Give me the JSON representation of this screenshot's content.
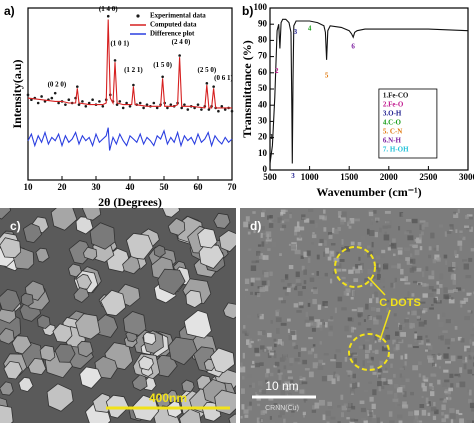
{
  "chart_data": [
    {
      "type": "line",
      "panel_label": "a)",
      "x_label": "2θ (Degrees)",
      "y_label": "Intensity(a.u)",
      "xlim": [
        10,
        70
      ],
      "xticks": [
        10,
        20,
        30,
        40,
        50,
        60,
        70
      ],
      "ylim": [
        0,
        105
      ],
      "legend": "upper right",
      "series": [
        {
          "name": "Experimental data",
          "color": "#1a1a1a",
          "style": "markers",
          "x": [
            10,
            11,
            12,
            13,
            14,
            15,
            16,
            17,
            18,
            19,
            20,
            21,
            22,
            23,
            24,
            24.5,
            25,
            26,
            27,
            28,
            29,
            30,
            31,
            32,
            33,
            33.6,
            34.2,
            35,
            35.6,
            36.2,
            37,
            38,
            39,
            40,
            41,
            42,
            43,
            44,
            45,
            46,
            47,
            48,
            49,
            49.6,
            50.2,
            51,
            52,
            53,
            54,
            54.6,
            55.2,
            56,
            57,
            58,
            59,
            60,
            61,
            62,
            62.6,
            63.2,
            64,
            64.6,
            65.2,
            66,
            67,
            68,
            69,
            70
          ],
          "values": [
            52,
            49,
            50,
            47,
            51,
            48,
            49,
            50,
            53,
            47,
            48,
            46,
            49,
            47,
            50,
            57,
            46,
            48,
            45,
            47,
            49,
            46,
            48,
            45,
            49,
            100,
            52,
            48,
            73,
            46,
            48,
            44,
            47,
            45,
            58,
            46,
            47,
            44,
            46,
            45,
            47,
            44,
            46,
            63,
            47,
            44,
            46,
            45,
            47,
            76,
            44,
            46,
            43,
            45,
            44,
            46,
            43,
            45,
            59,
            43,
            45,
            57,
            44,
            42,
            45,
            43,
            44,
            42
          ]
        },
        {
          "name": "Computed data",
          "color": "#d62020",
          "style": "line",
          "x": [
            10,
            14,
            18,
            20,
            22,
            24,
            24.5,
            25,
            28,
            32,
            33,
            33.6,
            34.2,
            35,
            35.6,
            36.2,
            38,
            40.5,
            41,
            41.5,
            45,
            49,
            49.6,
            50.2,
            53,
            54,
            54.6,
            55.2,
            58,
            62,
            62.6,
            63.2,
            64,
            64.6,
            65.2,
            68,
            70
          ],
          "values": [
            50,
            49,
            48,
            48,
            47,
            47,
            56,
            47,
            46,
            46,
            47,
            98,
            50,
            47,
            72,
            47,
            46,
            46,
            57,
            46,
            45,
            45,
            62,
            45,
            45,
            46,
            75,
            45,
            45,
            44,
            58,
            44,
            44,
            56,
            44,
            44,
            44
          ]
        },
        {
          "name": "Difference plot",
          "color": "#2b3fe0",
          "style": "line",
          "x": [
            10,
            11,
            12,
            13,
            14,
            15,
            16,
            17,
            18,
            19,
            20,
            21,
            22,
            23,
            24,
            25,
            26,
            27,
            28,
            29,
            30,
            31,
            32,
            33,
            33.6,
            34,
            35,
            36,
            37,
            38,
            39,
            40,
            41,
            42,
            43,
            44,
            45,
            46,
            47,
            48,
            49,
            50,
            51,
            52,
            53,
            54,
            55,
            56,
            57,
            58,
            59,
            60,
            61,
            62,
            63,
            64,
            65,
            66,
            67,
            68,
            69,
            70
          ],
          "values": [
            24,
            28,
            21,
            27,
            23,
            29,
            22,
            26,
            24,
            28,
            21,
            27,
            23,
            25,
            29,
            22,
            27,
            24,
            26,
            21,
            28,
            23,
            25,
            27,
            32,
            18,
            26,
            22,
            28,
            24,
            21,
            27,
            25,
            23,
            28,
            22,
            26,
            24,
            21,
            27,
            25,
            30,
            22,
            26,
            23,
            29,
            21,
            27,
            24,
            26,
            22,
            28,
            23,
            25,
            29,
            21,
            27,
            24,
            22,
            26,
            23,
            25
          ]
        }
      ],
      "annotations": [
        {
          "text": "(0 2 0)",
          "x": 18.5,
          "y": 58
        },
        {
          "text": "(1 4 0)",
          "x": 33.6,
          "y": 104
        },
        {
          "text": "(1 0 1)",
          "x": 37,
          "y": 83
        },
        {
          "text": "(1 2 1)",
          "x": 41,
          "y": 67
        },
        {
          "text": "(1 5 0)",
          "x": 49.6,
          "y": 70
        },
        {
          "text": "(2 4 0)",
          "x": 55,
          "y": 84
        },
        {
          "text": "(2 5 0)",
          "x": 62.6,
          "y": 67
        },
        {
          "text": "(0 6 1)",
          "x": 67.5,
          "y": 62
        }
      ]
    },
    {
      "type": "line",
      "panel_label": "b)",
      "x_label": "Wavenumber (cm⁻¹)",
      "y_label": "Transmittance (%)",
      "xlim": [
        500,
        3000
      ],
      "xticks": [
        500,
        1000,
        1500,
        2000,
        2500,
        3000
      ],
      "ylim": [
        0,
        100
      ],
      "yticks": [
        0,
        10,
        20,
        30,
        40,
        50,
        60,
        70,
        80,
        90,
        100
      ],
      "series": [
        {
          "color": "#111111",
          "style": "line",
          "x": [
            500,
            530,
            560,
            590,
            610,
            625,
            640,
            660,
            700,
            740,
            765,
            775,
            782,
            790,
            800,
            830,
            900,
            1000,
            1100,
            1180,
            1200,
            1215,
            1230,
            1260,
            1400,
            1500,
            1530,
            1550,
            1570,
            1600,
            1700,
            2000,
            2500,
            3000
          ],
          "values": [
            4,
            15,
            45,
            86,
            90,
            75,
            91,
            93,
            93,
            91,
            85,
            40,
            4,
            55,
            89,
            92,
            92,
            92,
            91,
            89,
            85,
            68,
            86,
            89,
            88,
            86,
            84,
            82,
            85,
            86,
            87,
            87,
            87,
            86
          ]
        }
      ],
      "annotations": [
        {
          "text": "1",
          "x": 520,
          "y": 20,
          "color": "#111111"
        },
        {
          "text": "2",
          "x": 585,
          "y": 61,
          "color": "#c0148c"
        },
        {
          "text": "3",
          "x": 820,
          "y": 85,
          "color": "#1a1a8c"
        },
        {
          "text": "4",
          "x": 1000,
          "y": 87,
          "color": "#1a9e1a"
        },
        {
          "text": "5",
          "x": 1215,
          "y": 58,
          "color": "#e07a10"
        },
        {
          "text": "6",
          "x": 1550,
          "y": 76,
          "color": "#7a1a9e"
        },
        {
          "text": "3",
          "x": 790,
          "y": -4,
          "color": "#1a1a8c"
        }
      ],
      "key": [
        {
          "text": "1.Fe-CO",
          "color": "#111111"
        },
        {
          "text": "2.Fe-O",
          "color": "#c0148c"
        },
        {
          "text": "3.O-H",
          "color": "#1a1a8c"
        },
        {
          "text": "4.C-O",
          "color": "#1a9e1a"
        },
        {
          "text": "5. C-N",
          "color": "#e07a10"
        },
        {
          "text": "6.N-H",
          "color": "#7a1a9e"
        },
        {
          "text": "7. H-OH",
          "color": "#20c0d8"
        }
      ]
    }
  ],
  "images": [
    {
      "label": "c)",
      "scale_bar": "400nm"
    },
    {
      "label": "d)",
      "annotation": "C DOTS",
      "scale_bar": "10 nm",
      "caption": "CRNN(Cu)"
    }
  ]
}
